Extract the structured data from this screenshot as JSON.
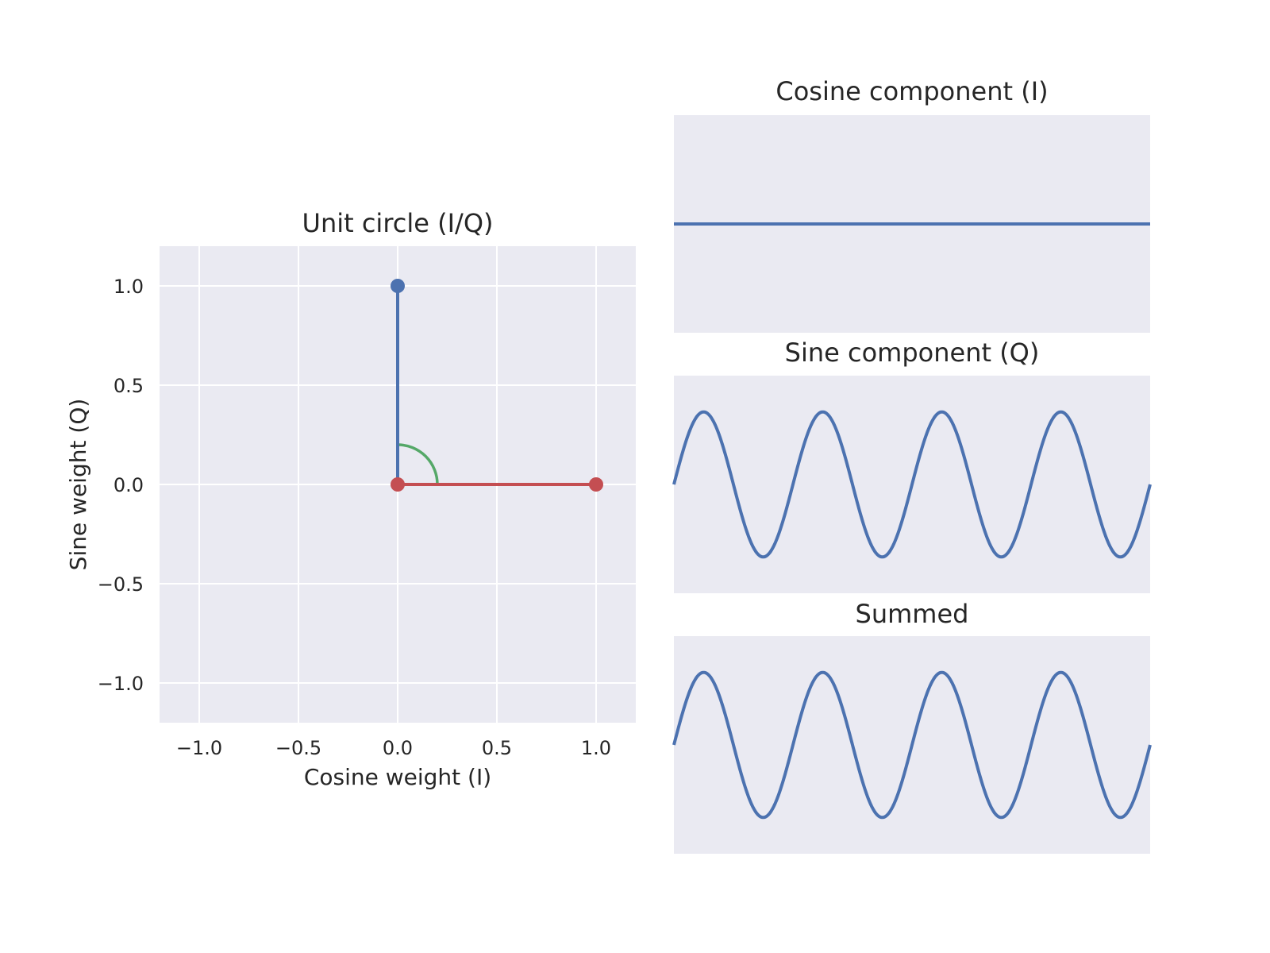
{
  "chart_data": [
    {
      "type": "line",
      "title": "Unit circle (I/Q)",
      "xlabel": "Cosine weight (I)",
      "ylabel": "Sine weight (Q)",
      "xlim": [
        -1.2,
        1.2
      ],
      "ylim": [
        -1.2,
        1.2
      ],
      "grid": true,
      "xticks": [
        -1.0,
        -0.5,
        0.0,
        0.5,
        1.0
      ],
      "yticks": [
        -1.0,
        -0.5,
        0.0,
        0.5,
        1.0
      ],
      "xtick_labels": [
        "−1.0",
        "−0.5",
        "0.0",
        "0.5",
        "1.0"
      ],
      "ytick_labels": [
        "−1.0",
        "−0.5",
        "0.0",
        "0.5",
        "1.0"
      ],
      "series": [
        {
          "color": "#4c72b0",
          "x": [
            0,
            0
          ],
          "y": [
            0,
            1
          ],
          "marker_end": true
        },
        {
          "color": "#c44e52",
          "x": [
            0,
            1
          ],
          "y": [
            0,
            0
          ],
          "marker_start": true,
          "marker_end": true
        }
      ],
      "arc": {
        "color": "#55a868",
        "radius": 0.2,
        "start_deg": 0,
        "end_deg": 90
      }
    },
    {
      "type": "line",
      "title": "Cosine component (I)",
      "xlim": [
        0,
        1
      ],
      "ylim": [
        -0.5,
        0.5
      ],
      "grid": false,
      "series": [
        {
          "color": "#4c72b0",
          "function": "constant",
          "value": 0.0
        }
      ]
    },
    {
      "type": "line",
      "title": "Sine component (Q)",
      "xlim": [
        0,
        1
      ],
      "ylim": [
        -0.6,
        0.6
      ],
      "grid": false,
      "series": [
        {
          "color": "#4c72b0",
          "function": "sine",
          "amplitude": 0.4,
          "cycles": 4,
          "phase": 0
        }
      ]
    },
    {
      "type": "line",
      "title": "Summed",
      "xlim": [
        0,
        1
      ],
      "ylim": [
        -0.6,
        0.6
      ],
      "grid": false,
      "series": [
        {
          "color": "#4c72b0",
          "function": "sine",
          "amplitude": 0.4,
          "cycles": 4,
          "phase": 0
        }
      ]
    }
  ]
}
